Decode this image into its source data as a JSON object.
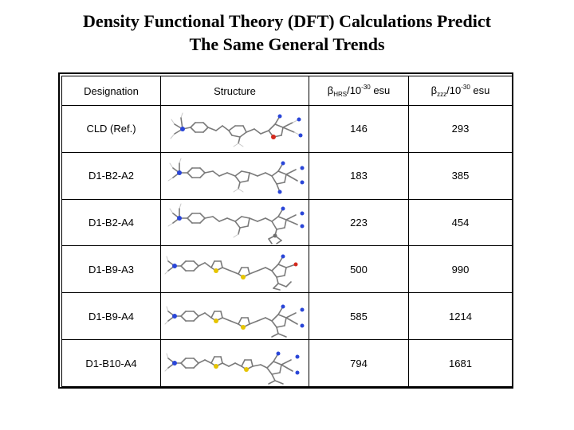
{
  "title": {
    "line1": "Density Functional Theory (DFT) Calculations Predict",
    "line2": "The Same General Trends"
  },
  "table": {
    "headers": {
      "designation": "Designation",
      "structure": "Structure",
      "beta_hrs_symbol": "β",
      "beta_hrs_sub": "HRS",
      "beta_hrs_unit": "/10",
      "beta_hrs_exp": "-30",
      "beta_hrs_esu": " esu",
      "beta_zzz_symbol": "β",
      "beta_zzz_sub": "zzz",
      "beta_zzz_unit": "/10",
      "beta_zzz_exp": "-30",
      "beta_zzz_esu": " esu"
    },
    "rows": [
      {
        "designation": "CLD (Ref.)",
        "structure_icon": "cld-molecule",
        "beta_hrs": "146",
        "beta_zzz": "293"
      },
      {
        "designation": "D1-B2-A2",
        "structure_icon": "d1-b2-a2-molecule",
        "beta_hrs": "183",
        "beta_zzz": "385"
      },
      {
        "designation": "D1-B2-A4",
        "structure_icon": "d1-b2-a4-molecule",
        "beta_hrs": "223",
        "beta_zzz": "454"
      },
      {
        "designation": "D1-B9-A3",
        "structure_icon": "d1-b9-a3-molecule",
        "beta_hrs": "500",
        "beta_zzz": "990"
      },
      {
        "designation": "D1-B9-A4",
        "structure_icon": "d1-b9-a4-molecule",
        "beta_hrs": "585",
        "beta_zzz": "1214"
      },
      {
        "designation": "D1-B10-A4",
        "structure_icon": "d1-b10-a4-molecule",
        "beta_hrs": "794",
        "beta_zzz": "1681"
      }
    ]
  }
}
